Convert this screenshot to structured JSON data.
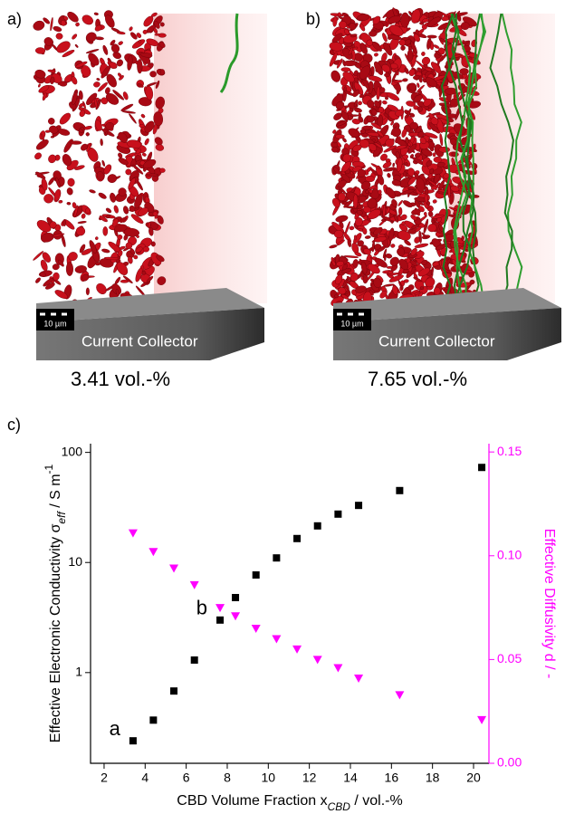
{
  "panels": [
    {
      "label": "a)",
      "caption": "3.41 vol.-%",
      "collector": "Current Collector",
      "scale": "10 µm"
    },
    {
      "label": "b)",
      "caption": "7.65 vol.-%",
      "collector": "Current Collector",
      "scale": "10 µm"
    }
  ],
  "chart_label": "c)",
  "chart_data": {
    "type": "scatter",
    "x_label": {
      "main": "CBD Volume Fraction x",
      "sub": "CBD",
      "rest": " / vol.-%"
    },
    "y_label": {
      "main": "Effective Electronic Conductivity σ",
      "sub": "eff",
      "rest": " / S m",
      "sup": "-1"
    },
    "y2_label": "Effective Diffusivity d / -",
    "x": [
      3.41,
      4.4,
      5.4,
      6.4,
      7.65,
      8.4,
      9.4,
      10.4,
      11.4,
      12.4,
      13.4,
      14.4,
      16.4,
      20.4
    ],
    "series": [
      {
        "color": "#000000",
        "marker": "square",
        "values": [
          0.24,
          0.37,
          0.68,
          1.3,
          3.0,
          4.8,
          7.7,
          11,
          16.5,
          21.5,
          27.5,
          33,
          45,
          73
        ]
      },
      {
        "color": "#ff00ff",
        "marker": "triangle",
        "axis": "y2",
        "values": [
          0.111,
          0.102,
          0.094,
          0.086,
          0.075,
          0.071,
          0.065,
          0.06,
          0.055,
          0.05,
          0.046,
          0.041,
          0.033,
          0.021
        ]
      }
    ],
    "annotations": [
      "a",
      "b"
    ],
    "xlim": [
      1.34,
      20.75
    ],
    "xticks": [
      2,
      4,
      6,
      8,
      10,
      12,
      14,
      16,
      18,
      20
    ],
    "ylim": [
      0.15,
      120
    ],
    "yscale": "log",
    "yticks": [
      1,
      10,
      100
    ],
    "y2lim": [
      0,
      0.154
    ],
    "y2ticks": [
      {
        "value": 0,
        "label": "0.00"
      },
      {
        "value": 0.05,
        "label": "0.05"
      },
      {
        "value": 0.1,
        "label": "0.10"
      },
      {
        "value": 0.15,
        "label": "0.15"
      }
    ]
  }
}
